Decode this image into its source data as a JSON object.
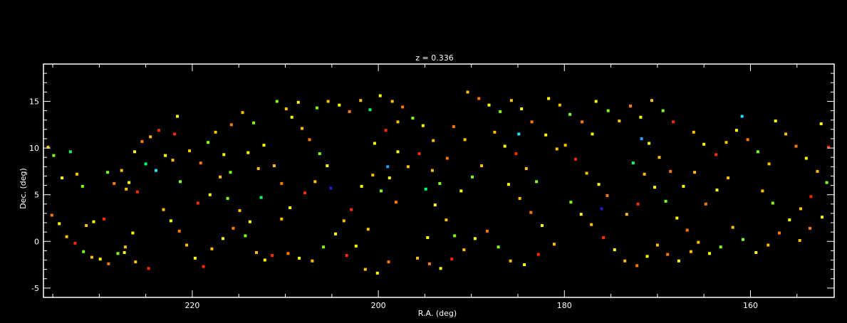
{
  "chart_data": {
    "type": "scatter",
    "title": "z = 0.336",
    "xlabel": "R.A. (deg)",
    "ylabel": "Dec. (deg)",
    "xlim": [
      236,
      151
    ],
    "ylim": [
      -6,
      19
    ],
    "x_ticks": [
      220,
      200,
      180,
      160
    ],
    "y_ticks": [
      -5,
      0,
      5,
      10,
      15
    ],
    "grid": false,
    "background": "#000000",
    "axis_color": "#ffffff",
    "color_scale": [
      "#1f1fd6",
      "#1fa0ff",
      "#22e0ff",
      "#00ff66",
      "#7dff1f",
      "#ffff00",
      "#ffc000",
      "#ff7a00",
      "#ff2a00"
    ],
    "points": [
      [
        235.5,
        10.1,
        6
      ],
      [
        234.9,
        9.2,
        4
      ],
      [
        234.0,
        6.8,
        5
      ],
      [
        233.1,
        9.6,
        3
      ],
      [
        232.4,
        7.2,
        6
      ],
      [
        231.8,
        5.9,
        4
      ],
      [
        235.1,
        2.8,
        7
      ],
      [
        234.3,
        1.9,
        5
      ],
      [
        233.5,
        0.5,
        6
      ],
      [
        232.6,
        -0.2,
        8
      ],
      [
        231.7,
        -1.1,
        4
      ],
      [
        230.8,
        -1.7,
        6
      ],
      [
        229.9,
        -1.9,
        5
      ],
      [
        229.0,
        -2.4,
        7
      ],
      [
        228.0,
        -1.3,
        4
      ],
      [
        227.2,
        -0.6,
        6
      ],
      [
        226.4,
        0.9,
        5
      ],
      [
        229.5,
        2.4,
        8
      ],
      [
        230.6,
        2.1,
        5
      ],
      [
        231.4,
        1.7,
        6
      ],
      [
        228.4,
        6.2,
        7
      ],
      [
        227.6,
        7.6,
        6
      ],
      [
        226.8,
        6.3,
        5
      ],
      [
        225.9,
        5.3,
        8
      ],
      [
        227.1,
        5.6,
        6
      ],
      [
        229.1,
        7.4,
        4
      ],
      [
        226.2,
        9.6,
        5
      ],
      [
        225.4,
        10.7,
        7
      ],
      [
        224.5,
        11.2,
        6
      ],
      [
        223.6,
        11.9,
        8
      ],
      [
        222.9,
        9.2,
        5
      ],
      [
        222.1,
        8.7,
        6
      ],
      [
        221.3,
        6.4,
        4
      ],
      [
        221.9,
        11.5,
        8
      ],
      [
        223.1,
        3.4,
        6
      ],
      [
        222.3,
        2.2,
        5
      ],
      [
        221.4,
        1.1,
        7
      ],
      [
        220.6,
        -0.4,
        6
      ],
      [
        219.7,
        -1.8,
        5
      ],
      [
        218.8,
        -2.7,
        8
      ],
      [
        217.9,
        -0.8,
        6
      ],
      [
        216.7,
        0.3,
        5
      ],
      [
        215.6,
        1.4,
        7
      ],
      [
        214.3,
        0.6,
        4
      ],
      [
        213.1,
        -1.2,
        6
      ],
      [
        212.2,
        -2.0,
        5
      ],
      [
        211.4,
        -1.5,
        8
      ],
      [
        218.3,
        10.6,
        4
      ],
      [
        217.5,
        11.7,
        6
      ],
      [
        216.6,
        9.3,
        5
      ],
      [
        215.8,
        12.5,
        7
      ],
      [
        214.6,
        13.8,
        6
      ],
      [
        213.4,
        12.7,
        4
      ],
      [
        212.3,
        10.3,
        5
      ],
      [
        211.2,
        8.1,
        6
      ],
      [
        210.4,
        6.2,
        7
      ],
      [
        214.0,
        9.5,
        5
      ],
      [
        212.9,
        7.8,
        6
      ],
      [
        219.4,
        4.1,
        8
      ],
      [
        218.1,
        5.0,
        5
      ],
      [
        217.0,
        6.9,
        6
      ],
      [
        215.9,
        7.4,
        4
      ],
      [
        209.3,
        13.3,
        5
      ],
      [
        208.2,
        12.1,
        6
      ],
      [
        207.4,
        10.9,
        7
      ],
      [
        206.3,
        9.4,
        4
      ],
      [
        205.5,
        8.1,
        5
      ],
      [
        206.8,
        6.4,
        6
      ],
      [
        207.9,
        5.2,
        8
      ],
      [
        209.5,
        3.6,
        5
      ],
      [
        210.4,
        2.4,
        6
      ],
      [
        209.7,
        -1.3,
        7
      ],
      [
        208.5,
        -1.8,
        5
      ],
      [
        207.1,
        -2.1,
        6
      ],
      [
        205.9,
        -0.6,
        4
      ],
      [
        204.6,
        0.8,
        5
      ],
      [
        203.7,
        2.2,
        6
      ],
      [
        202.9,
        3.4,
        8
      ],
      [
        201.8,
        5.9,
        5
      ],
      [
        200.6,
        7.1,
        6
      ],
      [
        199.7,
        5.4,
        4
      ],
      [
        198.8,
        6.8,
        5
      ],
      [
        198.1,
        4.2,
        7
      ],
      [
        201.1,
        1.3,
        6
      ],
      [
        202.4,
        -0.5,
        5
      ],
      [
        203.4,
        -1.5,
        8
      ],
      [
        201.4,
        -3.0,
        6
      ],
      [
        200.1,
        -3.4,
        5
      ],
      [
        198.9,
        -2.2,
        7
      ],
      [
        206.6,
        14.3,
        4
      ],
      [
        205.4,
        15.0,
        6
      ],
      [
        204.2,
        14.6,
        5
      ],
      [
        203.1,
        13.9,
        7
      ],
      [
        201.9,
        15.1,
        6
      ],
      [
        200.9,
        14.1,
        3
      ],
      [
        199.8,
        15.6,
        5
      ],
      [
        198.5,
        15.0,
        6
      ],
      [
        197.4,
        14.4,
        7
      ],
      [
        196.3,
        13.2,
        4
      ],
      [
        195.2,
        12.4,
        5
      ],
      [
        194.1,
        10.8,
        6
      ],
      [
        195.6,
        9.4,
        8
      ],
      [
        196.8,
        8.0,
        6
      ],
      [
        197.9,
        9.6,
        5
      ],
      [
        194.2,
        7.6,
        6
      ],
      [
        193.4,
        6.2,
        4
      ],
      [
        192.6,
        8.9,
        7
      ],
      [
        193.9,
        3.9,
        5
      ],
      [
        192.7,
        2.3,
        6
      ],
      [
        191.8,
        0.6,
        4
      ],
      [
        194.7,
        0.4,
        5
      ],
      [
        195.8,
        -1.8,
        6
      ],
      [
        194.5,
        -2.4,
        7
      ],
      [
        193.3,
        -2.9,
        5
      ],
      [
        192.1,
        -1.9,
        8
      ],
      [
        190.8,
        -0.9,
        6
      ],
      [
        189.6,
        0.3,
        5
      ],
      [
        190.4,
        16.0,
        6
      ],
      [
        189.2,
        15.3,
        7
      ],
      [
        188.1,
        14.6,
        5
      ],
      [
        186.9,
        13.9,
        4
      ],
      [
        185.7,
        15.1,
        6
      ],
      [
        184.6,
        14.2,
        5
      ],
      [
        183.5,
        12.8,
        7
      ],
      [
        187.5,
        11.7,
        6
      ],
      [
        186.4,
        10.2,
        5
      ],
      [
        185.2,
        9.4,
        8
      ],
      [
        184.1,
        7.8,
        6
      ],
      [
        183.0,
        6.4,
        4
      ],
      [
        186.0,
        6.1,
        5
      ],
      [
        184.8,
        4.6,
        6
      ],
      [
        183.6,
        3.1,
        7
      ],
      [
        182.4,
        1.7,
        5
      ],
      [
        181.1,
        -0.3,
        6
      ],
      [
        182.8,
        -1.4,
        8
      ],
      [
        184.3,
        -2.5,
        5
      ],
      [
        185.8,
        -2.1,
        6
      ],
      [
        187.1,
        -0.6,
        4
      ],
      [
        188.3,
        1.1,
        7
      ],
      [
        181.7,
        15.3,
        5
      ],
      [
        180.5,
        14.6,
        6
      ],
      [
        179.4,
        13.6,
        4
      ],
      [
        178.1,
        12.8,
        7
      ],
      [
        177.0,
        11.5,
        5
      ],
      [
        179.9,
        10.3,
        6
      ],
      [
        178.8,
        8.8,
        8
      ],
      [
        177.6,
        7.3,
        6
      ],
      [
        176.3,
        6.1,
        5
      ],
      [
        175.4,
        4.9,
        7
      ],
      [
        179.3,
        4.2,
        4
      ],
      [
        178.2,
        2.9,
        5
      ],
      [
        177.1,
        1.8,
        6
      ],
      [
        175.8,
        0.4,
        8
      ],
      [
        174.6,
        -0.9,
        5
      ],
      [
        173.5,
        -2.1,
        6
      ],
      [
        172.2,
        -2.6,
        7
      ],
      [
        171.1,
        -1.6,
        5
      ],
      [
        170.0,
        -0.4,
        6
      ],
      [
        176.6,
        15.0,
        5
      ],
      [
        175.3,
        14.0,
        4
      ],
      [
        174.1,
        12.9,
        6
      ],
      [
        172.9,
        14.5,
        7
      ],
      [
        171.8,
        13.3,
        5
      ],
      [
        170.6,
        15.1,
        6
      ],
      [
        169.4,
        14.0,
        4
      ],
      [
        168.3,
        12.8,
        8
      ],
      [
        170.9,
        10.5,
        5
      ],
      [
        169.8,
        9.0,
        6
      ],
      [
        168.6,
        7.5,
        7
      ],
      [
        172.6,
        8.4,
        3
      ],
      [
        171.4,
        7.2,
        6
      ],
      [
        170.3,
        5.8,
        5
      ],
      [
        169.1,
        4.3,
        4
      ],
      [
        172.1,
        4.0,
        8
      ],
      [
        173.3,
        2.9,
        6
      ],
      [
        167.9,
        2.5,
        5
      ],
      [
        166.8,
        1.2,
        7
      ],
      [
        165.6,
        -0.1,
        6
      ],
      [
        164.4,
        -1.3,
        5
      ],
      [
        163.2,
        -0.6,
        4
      ],
      [
        166.1,
        11.7,
        6
      ],
      [
        165.0,
        10.4,
        5
      ],
      [
        163.7,
        9.3,
        8
      ],
      [
        162.6,
        10.6,
        6
      ],
      [
        161.5,
        11.9,
        5
      ],
      [
        160.3,
        10.9,
        7
      ],
      [
        159.2,
        9.6,
        4
      ],
      [
        158.0,
        8.3,
        6
      ],
      [
        157.3,
        12.9,
        5
      ],
      [
        156.2,
        11.5,
        6
      ],
      [
        155.1,
        10.2,
        7
      ],
      [
        154.0,
        8.9,
        5
      ],
      [
        152.8,
        7.5,
        6
      ],
      [
        151.8,
        6.3,
        4
      ],
      [
        153.5,
        4.8,
        8
      ],
      [
        154.6,
        3.5,
        6
      ],
      [
        155.8,
        2.3,
        5
      ],
      [
        156.9,
        0.9,
        7
      ],
      [
        158.1,
        -0.4,
        6
      ],
      [
        159.4,
        -1.2,
        5
      ],
      [
        160.8,
        0.2,
        4
      ],
      [
        161.9,
        1.5,
        6
      ],
      [
        152.3,
        2.6,
        5
      ],
      [
        153.6,
        1.4,
        7
      ],
      [
        154.7,
        0.1,
        6
      ],
      [
        151.6,
        10.1,
        8
      ],
      [
        152.4,
        12.6,
        5
      ],
      [
        158.7,
        5.4,
        6
      ],
      [
        157.6,
        4.1,
        4
      ],
      [
        162.4,
        6.8,
        6
      ],
      [
        163.6,
        5.5,
        5
      ],
      [
        164.8,
        4.0,
        7
      ],
      [
        166.0,
        7.4,
        6
      ],
      [
        167.2,
        5.9,
        5
      ],
      [
        216.2,
        4.6,
        4
      ],
      [
        214.9,
        3.3,
        6
      ],
      [
        213.8,
        2.1,
        5
      ],
      [
        224.7,
        -2.9,
        8
      ],
      [
        226.1,
        -2.2,
        6
      ],
      [
        227.3,
        -1.2,
        5
      ],
      [
        219.1,
        8.4,
        7
      ],
      [
        220.3,
        9.7,
        6
      ],
      [
        221.6,
        13.4,
        5
      ],
      [
        188.9,
        8.1,
        6
      ],
      [
        189.9,
        6.9,
        4
      ],
      [
        191.1,
        5.4,
        5
      ],
      [
        191.9,
        12.3,
        7
      ],
      [
        190.7,
        10.9,
        6
      ],
      [
        200.4,
        10.5,
        5
      ],
      [
        199.2,
        11.9,
        8
      ],
      [
        197.9,
        12.8,
        6
      ],
      [
        182.0,
        11.4,
        5
      ],
      [
        180.8,
        9.9,
        6
      ],
      [
        168.9,
        -1.4,
        7
      ],
      [
        167.7,
        -2.1,
        5
      ],
      [
        166.4,
        -1.1,
        6
      ],
      [
        210.9,
        15.0,
        4
      ],
      [
        209.9,
        14.2,
        6
      ],
      [
        208.6,
        14.9,
        5
      ],
      [
        223.9,
        7.6,
        2
      ],
      [
        205.1,
        5.7,
        0
      ],
      [
        199.0,
        8.0,
        1
      ],
      [
        176.0,
        3.5,
        0
      ],
      [
        171.7,
        11.0,
        1
      ],
      [
        160.9,
        13.4,
        2
      ],
      [
        184.9,
        11.5,
        2
      ],
      [
        225.0,
        8.3,
        3
      ],
      [
        212.6,
        4.7,
        3
      ],
      [
        194.9,
        5.6,
        3
      ]
    ]
  }
}
